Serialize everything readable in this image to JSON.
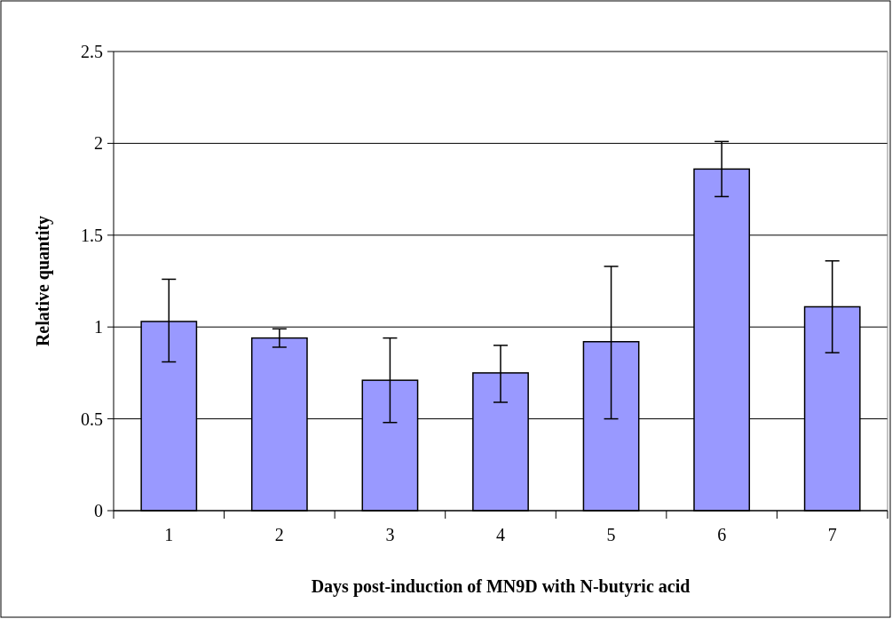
{
  "chart_data": {
    "type": "bar",
    "xlabel": "Days post-induction of MN9D with N-butyric acid",
    "ylabel": "Relative quantity",
    "categories": [
      "1",
      "2",
      "3",
      "4",
      "5",
      "6",
      "7"
    ],
    "values": [
      1.03,
      0.94,
      0.71,
      0.75,
      0.92,
      1.86,
      1.11
    ],
    "errors": [
      [
        0.81,
        1.26
      ],
      [
        0.89,
        0.99
      ],
      [
        0.48,
        0.94
      ],
      [
        0.59,
        0.9
      ],
      [
        0.5,
        1.33
      ],
      [
        1.71,
        2.01
      ],
      [
        0.86,
        1.36
      ]
    ],
    "color": "#9999ff",
    "ylim": [
      0,
      2.5
    ],
    "yticks": [
      0,
      0.5,
      1,
      1.5,
      2,
      2.5
    ],
    "grid": "y"
  }
}
